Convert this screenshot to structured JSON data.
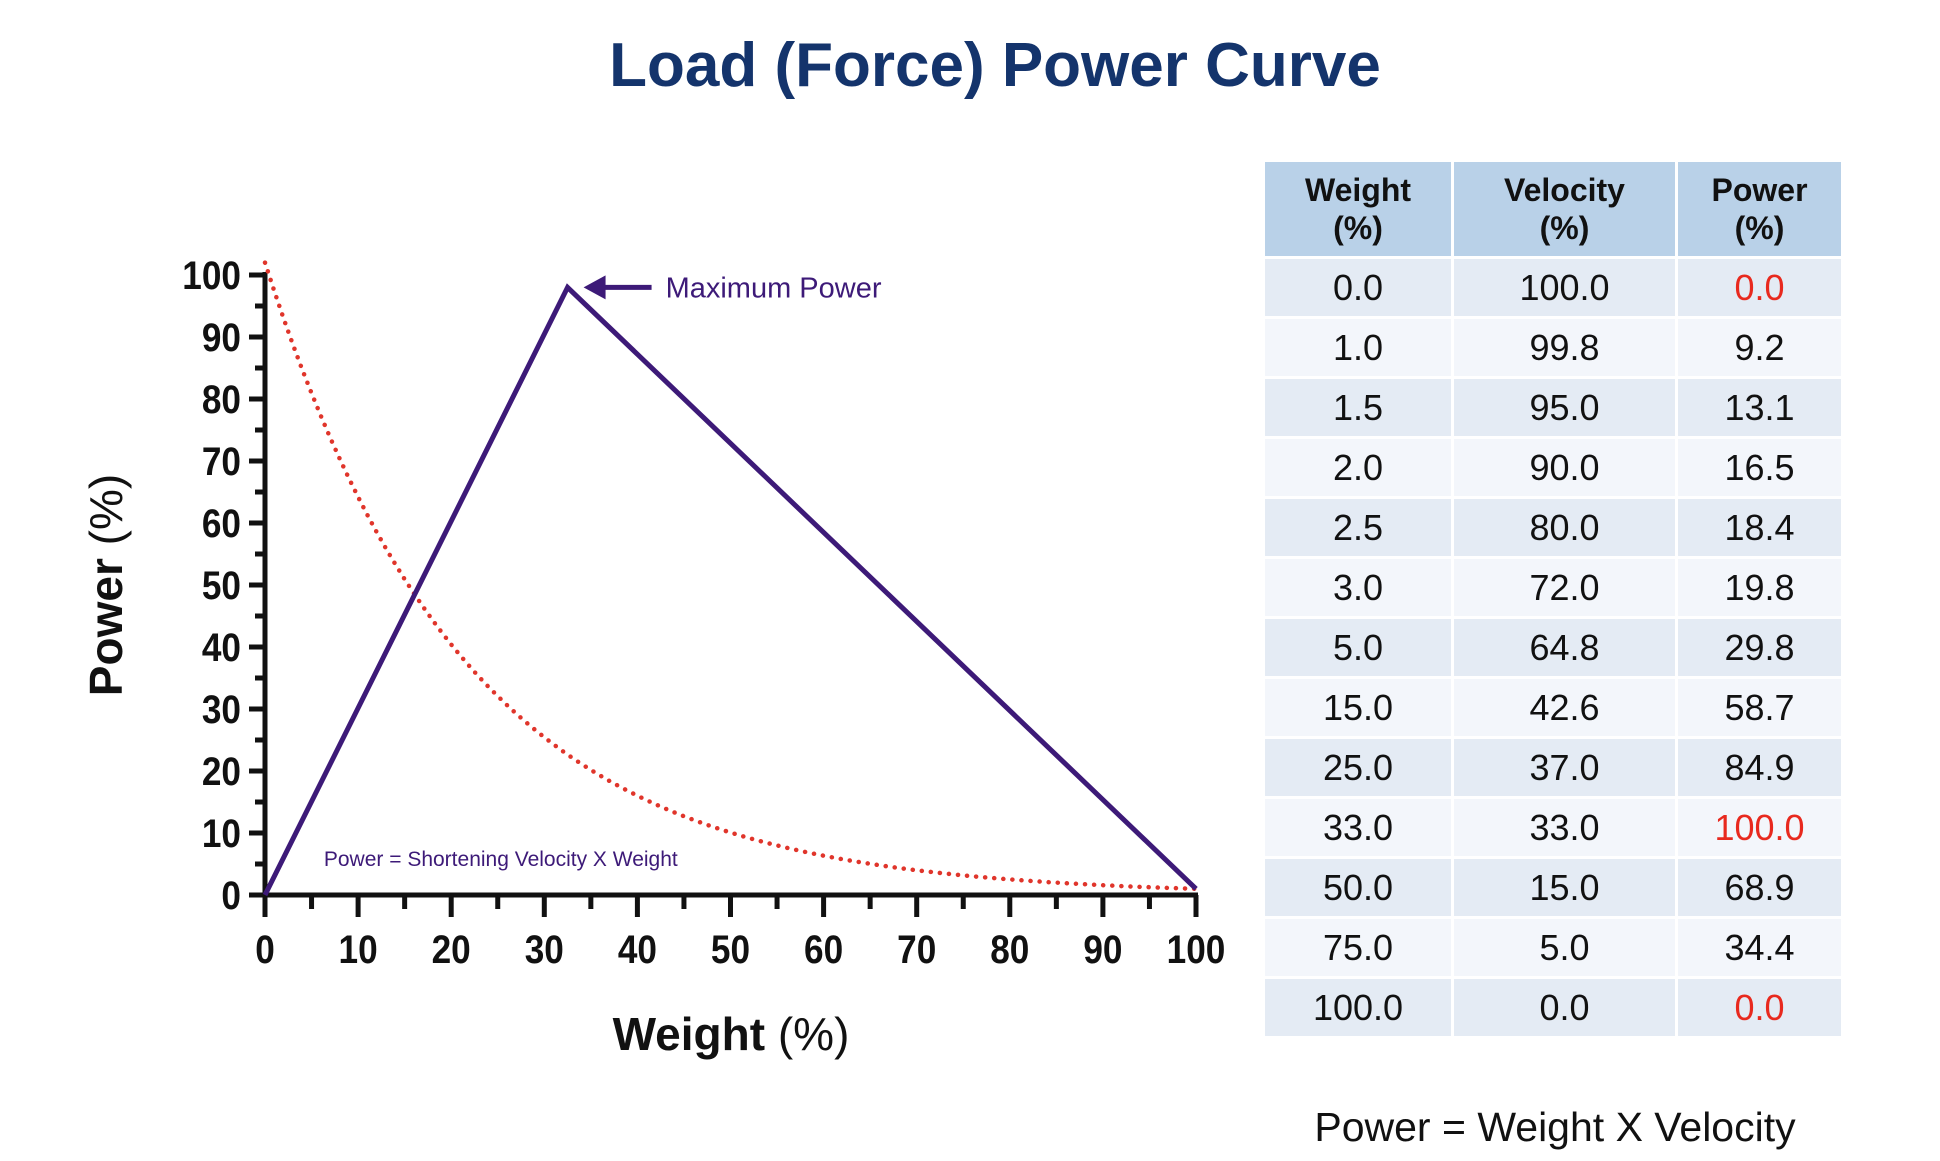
{
  "title": "Load (Force) Power Curve",
  "colors": {
    "title": "#14346c",
    "power_line": "#3d1a78",
    "velocity_curve": "#e0352b",
    "highlight": "#e8291e",
    "header_bg": "#b9d1e8"
  },
  "chart_data": {
    "type": "line",
    "title": "Load (Force) Power Curve",
    "xlabel": "Weight",
    "xlabel_unit": "(%)",
    "ylabel": "Power",
    "ylabel_unit": "(%)",
    "xlim": [
      0,
      100
    ],
    "ylim": [
      0,
      100
    ],
    "xticks": [
      "0",
      "10",
      "20",
      "30",
      "40",
      "50",
      "60",
      "70",
      "80",
      "90",
      "100"
    ],
    "yticks": [
      "0",
      "10",
      "20",
      "30",
      "40",
      "50",
      "60",
      "70",
      "80",
      "90",
      "100"
    ],
    "grid": false,
    "series": [
      {
        "name": "Power",
        "style": "solid",
        "x": [
          0,
          32.5,
          100
        ],
        "y": [
          0,
          98,
          1
        ]
      },
      {
        "name": "Shortening Velocity",
        "style": "dotted",
        "x": [
          0,
          5,
          10,
          15,
          20,
          25,
          30,
          35,
          40,
          45,
          50,
          55,
          60,
          65,
          70,
          75,
          80,
          85,
          90,
          95,
          100
        ],
        "y": [
          102,
          80,
          64,
          51,
          41,
          32,
          26,
          20,
          16,
          13,
          10,
          8,
          6.5,
          5.2,
          4.2,
          3.3,
          2.6,
          2.1,
          1.7,
          1.3,
          1.1
        ]
      }
    ],
    "annotations": [
      {
        "text": "Maximum Power",
        "x": 32.5,
        "y": 98,
        "arrow": true
      },
      {
        "text": "Power = Shortening Velocity X Weight",
        "x": 6,
        "y": 6
      }
    ]
  },
  "table": {
    "headers": [
      [
        "Weight",
        "(%)"
      ],
      [
        "Velocity",
        "(%)"
      ],
      [
        "Power",
        "(%)"
      ]
    ],
    "rows": [
      {
        "weight": "0.0",
        "velocity": "100.0",
        "power": "0.0",
        "highlight": true
      },
      {
        "weight": "1.0",
        "velocity": "99.8",
        "power": "9.2",
        "highlight": false
      },
      {
        "weight": "1.5",
        "velocity": "95.0",
        "power": "13.1",
        "highlight": false
      },
      {
        "weight": "2.0",
        "velocity": "90.0",
        "power": "16.5",
        "highlight": false
      },
      {
        "weight": "2.5",
        "velocity": "80.0",
        "power": "18.4",
        "highlight": false
      },
      {
        "weight": "3.0",
        "velocity": "72.0",
        "power": "19.8",
        "highlight": false
      },
      {
        "weight": "5.0",
        "velocity": "64.8",
        "power": "29.8",
        "highlight": false
      },
      {
        "weight": "15.0",
        "velocity": "42.6",
        "power": "58.7",
        "highlight": false
      },
      {
        "weight": "25.0",
        "velocity": "37.0",
        "power": "84.9",
        "highlight": false
      },
      {
        "weight": "33.0",
        "velocity": "33.0",
        "power": "100.0",
        "highlight": true
      },
      {
        "weight": "50.0",
        "velocity": "15.0",
        "power": "68.9",
        "highlight": false
      },
      {
        "weight": "75.0",
        "velocity": "5.0",
        "power": "34.4",
        "highlight": false
      },
      {
        "weight": "100.0",
        "velocity": "0.0",
        "power": "0.0",
        "highlight": true
      }
    ]
  },
  "caption": "Power = Weight X Velocity"
}
